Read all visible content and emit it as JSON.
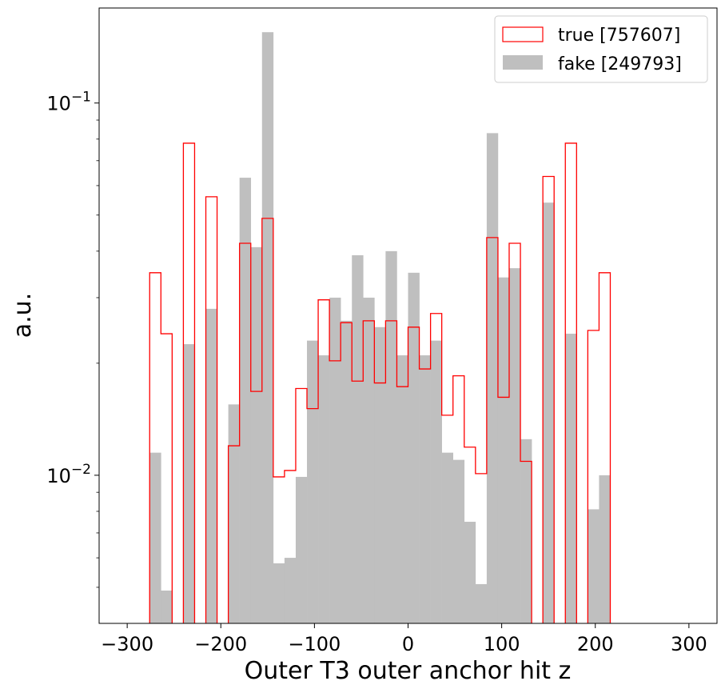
{
  "chart_data": {
    "type": "histogram",
    "xlabel": "Outer T3 outer anchor hit z",
    "ylabel": "a.u.",
    "yscale": "log",
    "xlim": [
      -330,
      330
    ],
    "ylim": [
      0.004,
      0.18
    ],
    "bin_width": 12,
    "bin_start": -300,
    "x_ticks": [
      -300,
      -200,
      -100,
      0,
      100,
      200,
      300
    ],
    "x_tick_labels": [
      "−300",
      "−200",
      "−100",
      "0",
      "100",
      "200",
      "300"
    ],
    "y_ticks": [
      0.01,
      0.1
    ],
    "y_tick_labels": [
      {
        "base": "10",
        "exp": "−2"
      },
      {
        "base": "10",
        "exp": "−1"
      }
    ],
    "legend_position": "top-right",
    "series": [
      {
        "name": "fake [249793]",
        "style": "filled",
        "color": "#bfbfbf",
        "values": [
          0,
          0,
          0.0115,
          0.0049,
          0,
          0.0225,
          0,
          0.028,
          0,
          0.0155,
          0.063,
          0.041,
          0.155,
          0.0058,
          0.006,
          0.0099,
          0.023,
          0.021,
          0.03,
          0.026,
          0.039,
          0.03,
          0.025,
          0.04,
          0.021,
          0.035,
          0.021,
          0.023,
          0.0115,
          0.011,
          0.0075,
          0.0051,
          0.083,
          0.034,
          0.036,
          0.0125,
          0,
          0.054,
          0,
          0.024,
          0,
          0.0081,
          0.01,
          0,
          0,
          0,
          0,
          0,
          0,
          0
        ]
      },
      {
        "name": "true [757607]",
        "style": "step",
        "color": "#ff0000",
        "values": [
          0,
          0,
          0.035,
          0.024,
          0,
          0.078,
          0,
          0.056,
          0,
          0.012,
          0.042,
          0.0168,
          0.049,
          0.0099,
          0.0103,
          0.0171,
          0.0151,
          0.0296,
          0.0203,
          0.0257,
          0.0179,
          0.026,
          0.0177,
          0.026,
          0.0173,
          0.025,
          0.0193,
          0.0272,
          0.0145,
          0.0185,
          0.0119,
          0.0101,
          0.0435,
          0.0162,
          0.042,
          0.0109,
          0,
          0.0635,
          0,
          0.078,
          0,
          0.0245,
          0.035,
          0,
          0,
          0,
          0,
          0,
          0,
          0
        ]
      }
    ]
  },
  "legend": {
    "items": [
      {
        "label": "true [757607]",
        "color": "#ff0000",
        "style": "outline"
      },
      {
        "label": "fake [249793]",
        "color": "#bfbfbf",
        "style": "filled"
      }
    ]
  }
}
